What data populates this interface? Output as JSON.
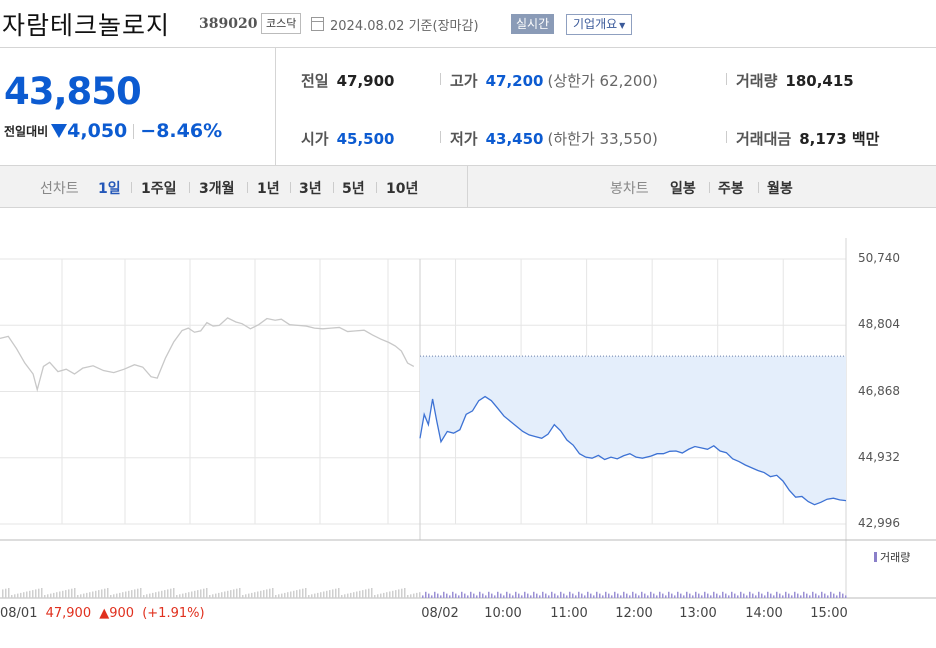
{
  "header": {
    "name": "자람테크놀로지",
    "code": "389020",
    "market": "코스닥",
    "date": "2024.08.02",
    "basis": "기준(장마감)",
    "realtime": "실시간",
    "company_info": "기업개요"
  },
  "summary": {
    "price": "43,850",
    "change_label": "전일대비",
    "change": "4,050",
    "rate": "−8.46%",
    "prev_close": {
      "label": "전일",
      "value": "47,900"
    },
    "open": {
      "label": "시가",
      "value": "45,500"
    },
    "high": {
      "label": "고가",
      "value": "47,200",
      "limit": "(상한가 62,200)"
    },
    "low": {
      "label": "저가",
      "value": "43,450",
      "limit": "(하한가 33,550)"
    },
    "volume": {
      "label": "거래량",
      "value": "180,415"
    },
    "amount": {
      "label": "거래대금",
      "value": "8,173 백만"
    }
  },
  "tabs": {
    "line_label": "선차트",
    "line": [
      "1일",
      "1주일",
      "3개월",
      "1년",
      "3년",
      "5년",
      "10년"
    ],
    "active": "1일",
    "candle_label": "봉차트",
    "candle": [
      "일봉",
      "주봉",
      "월봉"
    ]
  },
  "chart_data": {
    "type": "line",
    "yticks": [
      "50,740",
      "48,804",
      "46,868",
      "44,932",
      "42,996"
    ],
    "ylim": [
      42996,
      50740
    ],
    "xticks": [
      "08/02",
      "10:00",
      "11:00",
      "12:00",
      "13:00",
      "14:00",
      "15:00"
    ],
    "prev_close_line": 47900,
    "volume_label": "거래량",
    "prev_day": {
      "date": "08/01",
      "close": "47,900",
      "change": "▲900",
      "rate": "(+1.91%)"
    },
    "series": [
      {
        "period": "prev",
        "color": "#c8c8c8",
        "points": [
          [
            0.0,
            48420
          ],
          [
            0.04,
            48480
          ],
          [
            0.08,
            48120
          ],
          [
            0.12,
            47700
          ],
          [
            0.16,
            47380
          ],
          [
            0.18,
            46920
          ],
          [
            0.21,
            47600
          ],
          [
            0.24,
            47720
          ],
          [
            0.28,
            47450
          ],
          [
            0.32,
            47520
          ],
          [
            0.36,
            47380
          ],
          [
            0.4,
            47550
          ],
          [
            0.45,
            47620
          ],
          [
            0.5,
            47480
          ],
          [
            0.55,
            47420
          ],
          [
            0.6,
            47520
          ],
          [
            0.65,
            47650
          ],
          [
            0.69,
            47580
          ],
          [
            0.73,
            47300
          ],
          [
            0.76,
            47260
          ],
          [
            0.8,
            47850
          ],
          [
            0.84,
            48320
          ],
          [
            0.88,
            48650
          ],
          [
            0.91,
            48720
          ],
          [
            0.94,
            48600
          ],
          [
            0.97,
            48640
          ],
          [
            1.0,
            48880
          ],
          [
            1.03,
            48780
          ],
          [
            1.06,
            48800
          ],
          [
            1.1,
            49020
          ],
          [
            1.14,
            48900
          ],
          [
            1.17,
            48850
          ],
          [
            1.21,
            48700
          ],
          [
            1.25,
            48820
          ],
          [
            1.29,
            49000
          ],
          [
            1.33,
            48950
          ],
          [
            1.36,
            48980
          ],
          [
            1.4,
            48820
          ],
          [
            1.44,
            48800
          ],
          [
            1.48,
            48780
          ],
          [
            1.52,
            48720
          ],
          [
            1.56,
            48700
          ],
          [
            1.6,
            48720
          ],
          [
            1.64,
            48740
          ],
          [
            1.68,
            48620
          ],
          [
            1.72,
            48640
          ],
          [
            1.76,
            48660
          ],
          [
            1.8,
            48520
          ],
          [
            1.84,
            48400
          ],
          [
            1.88,
            48300
          ],
          [
            1.91,
            48200
          ],
          [
            1.94,
            48050
          ],
          [
            1.97,
            47700
          ],
          [
            2.0,
            47600
          ]
        ]
      },
      {
        "period": "today",
        "color": "#3d72d4",
        "points": [
          [
            0.0,
            45500
          ],
          [
            0.02,
            46200
          ],
          [
            0.04,
            45900
          ],
          [
            0.06,
            46650
          ],
          [
            0.08,
            46000
          ],
          [
            0.1,
            45400
          ],
          [
            0.13,
            45700
          ],
          [
            0.16,
            45650
          ],
          [
            0.19,
            45750
          ],
          [
            0.22,
            46200
          ],
          [
            0.25,
            46300
          ],
          [
            0.28,
            46600
          ],
          [
            0.31,
            46720
          ],
          [
            0.34,
            46600
          ],
          [
            0.37,
            46380
          ],
          [
            0.4,
            46150
          ],
          [
            0.43,
            46000
          ],
          [
            0.46,
            45850
          ],
          [
            0.49,
            45700
          ],
          [
            0.52,
            45600
          ],
          [
            0.55,
            45550
          ],
          [
            0.58,
            45500
          ],
          [
            0.61,
            45620
          ],
          [
            0.64,
            45900
          ],
          [
            0.67,
            45720
          ],
          [
            0.7,
            45450
          ],
          [
            0.73,
            45300
          ],
          [
            0.76,
            45050
          ],
          [
            0.79,
            44950
          ],
          [
            0.82,
            44920
          ],
          [
            0.85,
            45000
          ],
          [
            0.88,
            44880
          ],
          [
            0.91,
            44950
          ],
          [
            0.94,
            44900
          ],
          [
            0.97,
            44990
          ],
          [
            1.0,
            45050
          ],
          [
            1.03,
            44950
          ],
          [
            1.06,
            44920
          ],
          [
            1.1,
            44980
          ],
          [
            1.13,
            45050
          ],
          [
            1.16,
            45050
          ],
          [
            1.19,
            45120
          ],
          [
            1.22,
            45130
          ],
          [
            1.25,
            45070
          ],
          [
            1.28,
            45180
          ],
          [
            1.31,
            45260
          ],
          [
            1.34,
            45220
          ],
          [
            1.37,
            45180
          ],
          [
            1.4,
            45280
          ],
          [
            1.43,
            45130
          ],
          [
            1.46,
            45080
          ],
          [
            1.49,
            44900
          ],
          [
            1.52,
            44820
          ],
          [
            1.55,
            44720
          ],
          [
            1.58,
            44640
          ],
          [
            1.61,
            44560
          ],
          [
            1.64,
            44500
          ],
          [
            1.67,
            44380
          ],
          [
            1.7,
            44420
          ],
          [
            1.73,
            44250
          ],
          [
            1.76,
            43980
          ],
          [
            1.79,
            43780
          ],
          [
            1.82,
            43800
          ],
          [
            1.85,
            43650
          ],
          [
            1.88,
            43560
          ],
          [
            1.91,
            43630
          ],
          [
            1.94,
            43720
          ],
          [
            1.97,
            43750
          ],
          [
            2.0,
            43700
          ],
          [
            2.03,
            43680
          ]
        ]
      }
    ]
  }
}
